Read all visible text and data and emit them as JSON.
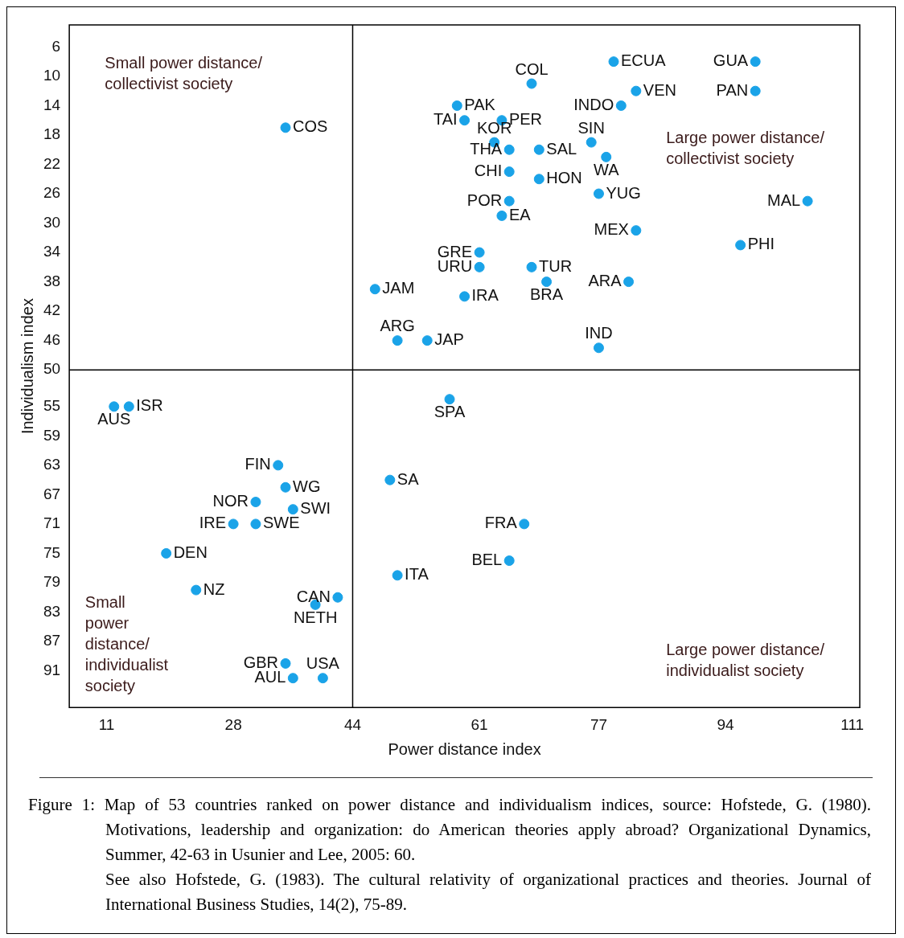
{
  "chart_data": {
    "type": "scatter",
    "xlabel": "Power distance index",
    "ylabel": "Individualism index",
    "x": [
      79,
      98,
      68,
      82,
      98,
      58,
      80,
      64,
      59,
      35,
      63,
      76,
      69,
      65,
      78,
      65,
      69,
      65,
      77,
      105,
      64,
      82,
      96,
      61,
      61,
      68,
      47,
      70,
      81,
      59,
      50,
      54,
      77,
      57,
      14,
      12,
      34,
      49,
      35,
      31,
      36,
      28,
      31,
      67,
      65,
      19,
      50,
      23,
      42,
      39,
      35,
      40,
      36
    ],
    "values": [
      8,
      8,
      11,
      12,
      12,
      14,
      14,
      16,
      16,
      17,
      19,
      19,
      20,
      20,
      21,
      23,
      24,
      27,
      26,
      27,
      29,
      31,
      33,
      34,
      36,
      36,
      39,
      38,
      38,
      40,
      46,
      46,
      47,
      54,
      55,
      55,
      63,
      65,
      66,
      68,
      69,
      71,
      71,
      71,
      76,
      75,
      78,
      80,
      81,
      82,
      90,
      92,
      92
    ],
    "color": "#1aa3e8",
    "marker": "circle",
    "legend": false,
    "grid": false,
    "xlim": [
      6,
      112
    ],
    "xticks": [
      11,
      28,
      44,
      61,
      77,
      94,
      111
    ],
    "ylim": [
      96,
      3
    ],
    "yticks": [
      6,
      10,
      14,
      18,
      22,
      26,
      30,
      34,
      38,
      42,
      46,
      50,
      55,
      59,
      63,
      67,
      71,
      75,
      79,
      83,
      87,
      91
    ],
    "ref_lines": [
      {
        "axis": "x",
        "value": 44,
        "color": "#000000"
      },
      {
        "axis": "y",
        "value": 50,
        "color": "#000000"
      }
    ],
    "annotations": [
      "Small power distance/\ncollectivist society",
      "Large power distance/\ncollectivist society",
      "Small\npower\ndistance/\nindividualist\nsociety",
      "Large power distance/\nindividualist society",
      "Figure 1: Map of 53 countries ranked on power distance and individualism indices, source: Hofstede, G. (1980). Motivations, leadership and organization: do American theories apply abroad? Organizational Dynamics, Summer, 42-63 in Usunier and Lee, 2005: 60.",
      "See also Hofstede, G. (1983). The cultural relativity of organizational practices and theories. Journal of International Business Studies, 14(2), 75-89.",
      {
        "text": "ECUA",
        "x": 79,
        "y": 8
      },
      {
        "text": "GUA",
        "x": 98,
        "y": 8
      },
      {
        "text": "COL",
        "x": 68,
        "y": 11
      },
      {
        "text": "VEN",
        "x": 82,
        "y": 12
      },
      {
        "text": "PAN",
        "x": 98,
        "y": 12
      },
      {
        "text": "PAK",
        "x": 58,
        "y": 14
      },
      {
        "text": "INDO",
        "x": 80,
        "y": 14
      },
      {
        "text": "PER",
        "x": 64,
        "y": 16
      },
      {
        "text": "TAI",
        "x": 59,
        "y": 16
      },
      {
        "text": "COS",
        "x": 35,
        "y": 17
      },
      {
        "text": "KOR",
        "x": 63,
        "y": 19
      },
      {
        "text": "SIN",
        "x": 76,
        "y": 19
      },
      {
        "text": "SAL",
        "x": 69,
        "y": 20
      },
      {
        "text": "THA",
        "x": 65,
        "y": 20
      },
      {
        "text": "WA",
        "x": 78,
        "y": 21
      },
      {
        "text": "CHI",
        "x": 65,
        "y": 23
      },
      {
        "text": "HON",
        "x": 69,
        "y": 24
      },
      {
        "text": "POR",
        "x": 65,
        "y": 27
      },
      {
        "text": "YUG",
        "x": 77,
        "y": 26
      },
      {
        "text": "MAL",
        "x": 105,
        "y": 27
      },
      {
        "text": "EA",
        "x": 64,
        "y": 29
      },
      {
        "text": "MEX",
        "x": 82,
        "y": 31
      },
      {
        "text": "PHI",
        "x": 96,
        "y": 33
      },
      {
        "text": "GRE",
        "x": 61,
        "y": 34
      },
      {
        "text": "URU",
        "x": 61,
        "y": 36
      },
      {
        "text": "TUR",
        "x": 68,
        "y": 36
      },
      {
        "text": "JAM",
        "x": 47,
        "y": 39
      },
      {
        "text": "BRA",
        "x": 70,
        "y": 38
      },
      {
        "text": "ARA",
        "x": 81,
        "y": 38
      },
      {
        "text": "IRA",
        "x": 59,
        "y": 40
      },
      {
        "text": "ARG",
        "x": 50,
        "y": 46
      },
      {
        "text": "JAP",
        "x": 54,
        "y": 46
      },
      {
        "text": "IND",
        "x": 77,
        "y": 47
      },
      {
        "text": "SPA",
        "x": 57,
        "y": 54
      },
      {
        "text": "ISR",
        "x": 14,
        "y": 55
      },
      {
        "text": "AUS",
        "x": 12,
        "y": 55
      },
      {
        "text": "FIN",
        "x": 34,
        "y": 63
      },
      {
        "text": "SA",
        "x": 49,
        "y": 65
      },
      {
        "text": "WG",
        "x": 35,
        "y": 66
      },
      {
        "text": "NOR",
        "x": 31,
        "y": 68
      },
      {
        "text": "SWI",
        "x": 36,
        "y": 69
      },
      {
        "text": "IRE",
        "x": 28,
        "y": 71
      },
      {
        "text": "SWE",
        "x": 31,
        "y": 71
      },
      {
        "text": "FRA",
        "x": 67,
        "y": 71
      },
      {
        "text": "BEL",
        "x": 65,
        "y": 76
      },
      {
        "text": "DEN",
        "x": 19,
        "y": 75
      },
      {
        "text": "ITA",
        "x": 50,
        "y": 78
      },
      {
        "text": "NZ",
        "x": 23,
        "y": 80
      },
      {
        "text": "CAN",
        "x": 42,
        "y": 81
      },
      {
        "text": "NETH",
        "x": 39,
        "y": 82
      },
      {
        "text": "GBR",
        "x": 35,
        "y": 90
      },
      {
        "text": "USA",
        "x": 40,
        "y": 92
      },
      {
        "text": "AUL",
        "x": 36,
        "y": 92
      }
    ]
  }
}
